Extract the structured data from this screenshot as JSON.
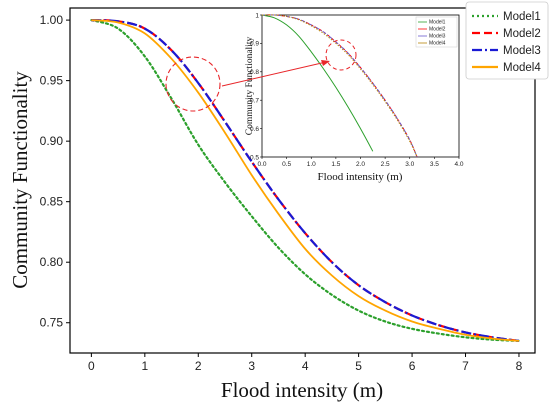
{
  "chart_data": {
    "type": "line",
    "xlabel": "Flood intensity (m)",
    "ylabel": "Community Functionality",
    "xlim": [
      -0.4,
      8.3
    ],
    "ylim": [
      0.725,
      1.01
    ],
    "xticks": [
      0,
      1,
      2,
      3,
      4,
      5,
      6,
      7,
      8
    ],
    "yticks": [
      0.75,
      0.8,
      0.85,
      0.9,
      0.95,
      1.0
    ],
    "x": [
      0,
      0.5,
      1,
      1.5,
      2,
      2.5,
      3,
      3.5,
      4,
      4.5,
      5,
      5.5,
      6,
      6.5,
      7,
      7.5,
      8
    ],
    "series": [
      {
        "name": "Model1",
        "color": "#2ca02c",
        "style": "dotted",
        "values": [
          1.0,
          0.993,
          0.97,
          0.935,
          0.897,
          0.866,
          0.838,
          0.812,
          0.79,
          0.773,
          0.76,
          0.751,
          0.745,
          0.741,
          0.738,
          0.736,
          0.735
        ]
      },
      {
        "name": "Model2",
        "color": "#ff0000",
        "style": "dashed",
        "values": [
          1.0,
          0.999,
          0.993,
          0.975,
          0.948,
          0.916,
          0.883,
          0.852,
          0.824,
          0.8,
          0.781,
          0.767,
          0.756,
          0.748,
          0.742,
          0.738,
          0.735
        ]
      },
      {
        "name": "Model3",
        "color": "#1a1ad4",
        "style": "dashdot",
        "values": [
          1.0,
          0.999,
          0.993,
          0.975,
          0.948,
          0.916,
          0.883,
          0.852,
          0.824,
          0.8,
          0.781,
          0.767,
          0.756,
          0.748,
          0.742,
          0.738,
          0.735
        ]
      },
      {
        "name": "Model4",
        "color": "#ffa500",
        "style": "solid",
        "values": [
          1.0,
          0.998,
          0.989,
          0.968,
          0.94,
          0.907,
          0.872,
          0.84,
          0.811,
          0.789,
          0.772,
          0.76,
          0.751,
          0.745,
          0.74,
          0.737,
          0.735
        ]
      }
    ],
    "legend": "top-right",
    "inset": {
      "xlabel": "Flood intensity (m)",
      "ylabel": "Community Functionality",
      "xlim": [
        0,
        4.0
      ],
      "ylim": [
        0.5,
        1.0
      ],
      "xticks": [
        "0.0",
        "0.5",
        "1.0",
        "1.5",
        "2.0",
        "2.5",
        "3.0",
        "3.5",
        "4.0"
      ],
      "yticks": [
        "0.5",
        "0.6",
        "0.7",
        "0.8",
        "0.9",
        "1"
      ],
      "x": [
        0,
        0.25,
        0.5,
        0.75,
        1.0,
        1.25,
        1.5,
        1.75,
        2.0,
        2.25,
        2.5,
        2.75,
        3.0,
        3.15
      ],
      "series": [
        {
          "name": "Model1",
          "color": "#2ca02c",
          "style": "solid",
          "values": [
            1.0,
            0.99,
            0.965,
            0.925,
            0.87,
            0.81,
            0.745,
            0.675,
            0.6,
            0.52,
            null,
            null,
            null,
            null
          ]
        },
        {
          "name": "Model2",
          "color": "#ff0000",
          "style": "dashed",
          "values": [
            1.0,
            1.0,
            0.995,
            0.985,
            0.965,
            0.94,
            0.905,
            0.865,
            0.815,
            0.76,
            0.7,
            0.635,
            0.56,
            0.5
          ]
        },
        {
          "name": "Model3",
          "color": "#6a5acd",
          "style": "dashdot",
          "values": [
            1.0,
            1.0,
            0.995,
            0.985,
            0.965,
            0.94,
            0.905,
            0.865,
            0.815,
            0.76,
            0.7,
            0.635,
            0.56,
            0.5
          ]
        },
        {
          "name": "Model4",
          "color": "#b8860b",
          "style": "dotted",
          "values": [
            1.0,
            1.0,
            0.995,
            0.983,
            0.962,
            0.935,
            0.9,
            0.86,
            0.81,
            0.755,
            0.695,
            0.63,
            0.555,
            0.5
          ]
        }
      ]
    },
    "annotation": "dashed red circles with arrow indicating zoomed region"
  }
}
